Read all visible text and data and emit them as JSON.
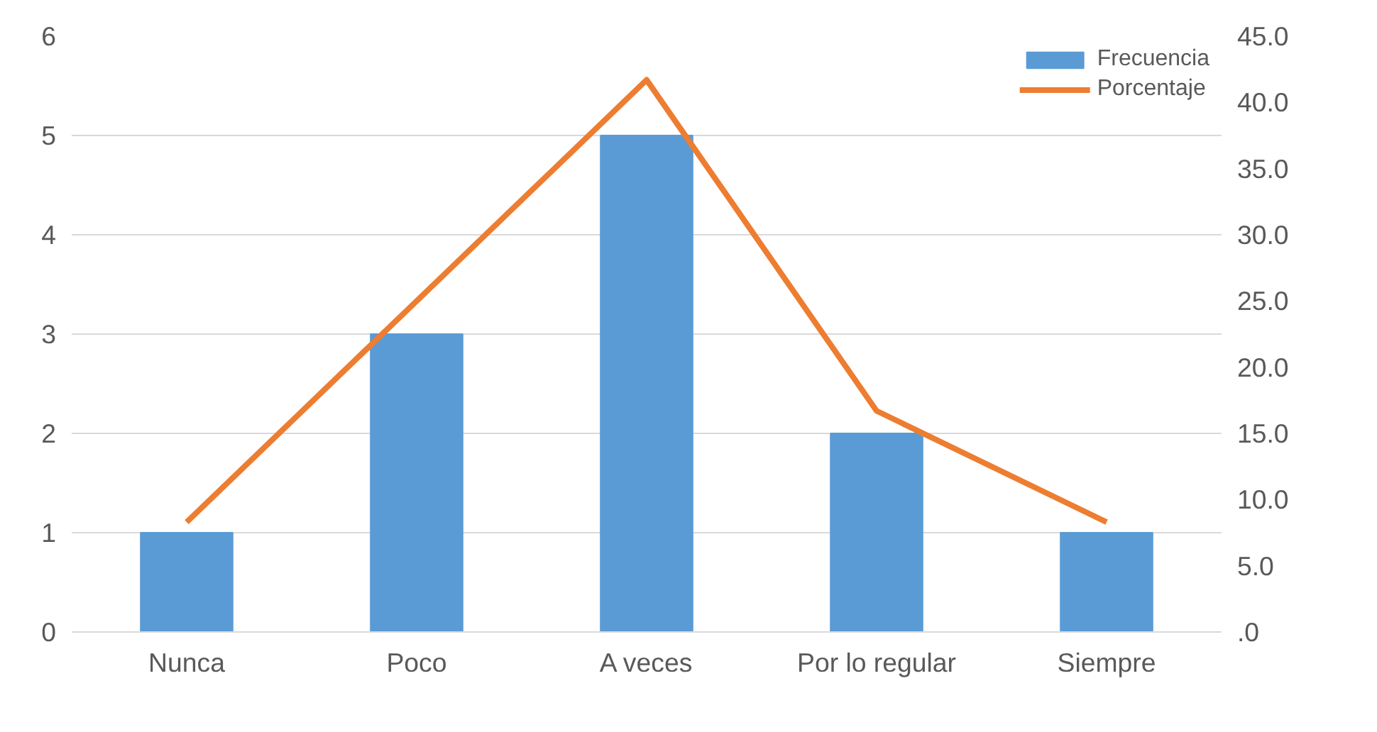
{
  "chart_data": {
    "type": "bar",
    "categories": [
      "Nunca",
      "Poco",
      "A veces",
      "Por lo regular",
      "Siempre"
    ],
    "series": [
      {
        "name": "Frecuencia",
        "color": "#5b9bd5",
        "values": [
          1,
          3,
          5,
          2,
          1
        ]
      },
      {
        "name": "Porcentaje",
        "type": "line",
        "axis": "y2",
        "color": "#ed7d31",
        "values": [
          8.3,
          25.0,
          41.7,
          16.7,
          8.3
        ]
      }
    ],
    "ylim": [
      0,
      6
    ],
    "yticks": [
      0,
      1,
      2,
      3,
      4,
      5,
      6
    ],
    "y2lim": [
      0,
      45
    ],
    "y2ticks": [
      {
        "value": 0,
        "label": ".0"
      },
      {
        "value": 5,
        "label": "5.0"
      },
      {
        "value": 10,
        "label": "10.0"
      },
      {
        "value": 15,
        "label": "15.0"
      },
      {
        "value": 20,
        "label": "20.0"
      },
      {
        "value": 25,
        "label": "25.0"
      },
      {
        "value": 30,
        "label": "30.0"
      },
      {
        "value": 35,
        "label": "35.0"
      },
      {
        "value": 40,
        "label": "40.0"
      },
      {
        "value": 45,
        "label": "45.0"
      }
    ],
    "grid": "y",
    "legend": "top right"
  }
}
